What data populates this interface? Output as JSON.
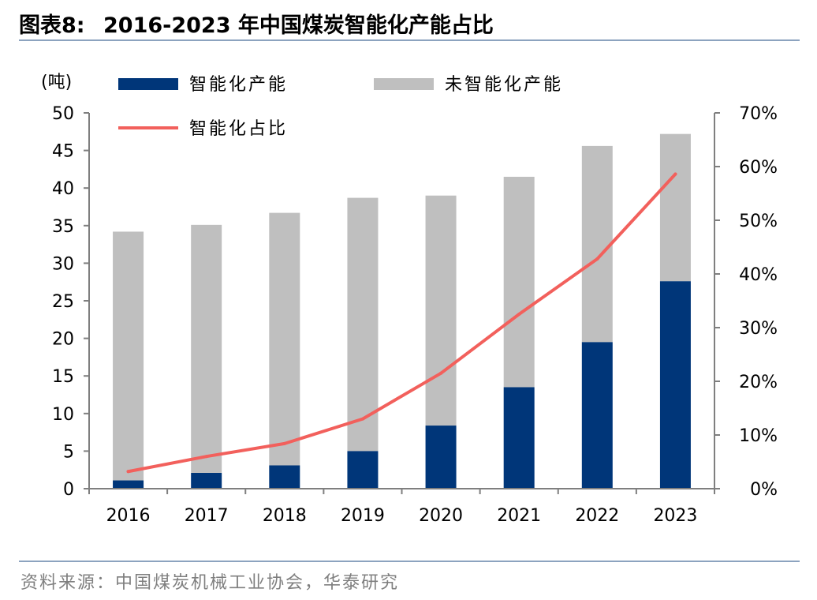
{
  "figure": {
    "label": "图表8:",
    "title": "2016-2023 年中国煤炭智能化产能占比"
  },
  "source": "资料来源：中国煤炭机械工业协会，华泰研究",
  "colors": {
    "smart": "#003679",
    "non_smart": "#bfbfbf",
    "ratio": "#f2605c",
    "axis": "#7f7f7f",
    "rule": "#8ca3bf"
  },
  "chart_data": {
    "type": "bar",
    "stacked": true,
    "categories": [
      "2016",
      "2017",
      "2018",
      "2019",
      "2020",
      "2021",
      "2022",
      "2023"
    ],
    "series": [
      {
        "name": "智能化产能",
        "axis": "left",
        "values": [
          1.1,
          2.1,
          3.1,
          5.0,
          8.4,
          13.5,
          19.5,
          27.6
        ]
      },
      {
        "name": "未智能化产能",
        "axis": "left",
        "values": [
          33.1,
          33.0,
          33.6,
          33.7,
          30.6,
          28.0,
          26.1,
          19.6
        ]
      },
      {
        "name": "智能化占比",
        "axis": "right",
        "type": "line",
        "values": [
          3.2,
          6.0,
          8.4,
          13.0,
          21.5,
          32.5,
          42.8,
          58.6
        ]
      }
    ],
    "ylabel": "(吨)",
    "ylim": [
      0,
      50
    ],
    "yticks": [
      "0",
      "5",
      "10",
      "15",
      "20",
      "25",
      "30",
      "35",
      "40",
      "45",
      "50"
    ],
    "y2lim": [
      0,
      70
    ],
    "y2ticks": [
      "0%",
      "10%",
      "20%",
      "30%",
      "40%",
      "50%",
      "60%",
      "70%"
    ],
    "legend": "top",
    "grid": false
  }
}
